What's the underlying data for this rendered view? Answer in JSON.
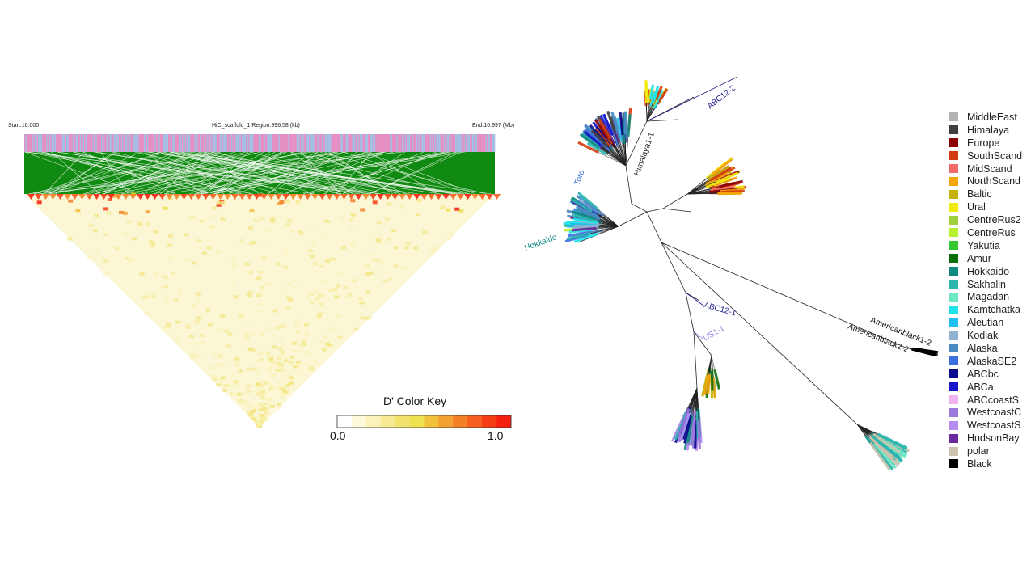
{
  "ld_plot": {
    "start_label": "Start:10.000",
    "region_label": "HiC_scaffold_1 Region:996.58 (kb)",
    "end_label": "End:10.997 (Mb)",
    "color_key": {
      "title": "D' Color Key",
      "min_label": "0.0",
      "max_label": "1.0",
      "colors": [
        "#ffffff",
        "#fdf9da",
        "#faf2b8",
        "#f6ea92",
        "#f2e36f",
        "#eee04e",
        "#f1c13d",
        "#f3a032",
        "#f47f27",
        "#f55e1e",
        "#f53d15",
        "#f51f10"
      ]
    },
    "track_colors": {
      "pink": "#e58fc4",
      "blue": "#9fc3e6",
      "green": "#118a11"
    }
  },
  "tree": {
    "clade_labels": [
      {
        "text": "ABC12-2",
        "color": "#1a1a8c"
      },
      {
        "text": "ABC12-1",
        "color": "#1a1a8c"
      },
      {
        "text": "US1-1",
        "color": "#9b7be0"
      },
      {
        "text": "Americanblack1-2",
        "color": "#111111"
      },
      {
        "text": "Americanblack2-2",
        "color": "#111111"
      },
      {
        "text": "Himalaya1-1",
        "color": "#333333"
      },
      {
        "text": "Hokkaido",
        "color": "#148b84"
      },
      {
        "text": "Toro",
        "color": "#3a6fd8"
      }
    ]
  },
  "legend": {
    "items": [
      {
        "label": "MiddleEast",
        "color": "#b3b3b3"
      },
      {
        "label": "Himalaya",
        "color": "#404040"
      },
      {
        "label": "Europe",
        "color": "#8b0000"
      },
      {
        "label": "SouthScand",
        "color": "#d13b0f"
      },
      {
        "label": "MidScand",
        "color": "#f26b6b"
      },
      {
        "label": "NorthScand",
        "color": "#f5a40a"
      },
      {
        "label": "Baltic",
        "color": "#c4b20a"
      },
      {
        "label": "Ural",
        "color": "#f0ea0f"
      },
      {
        "label": "CentreRus2",
        "color": "#9fcf3a"
      },
      {
        "label": "CentreRus",
        "color": "#b6f02e"
      },
      {
        "label": "Yakutia",
        "color": "#33c933"
      },
      {
        "label": "Amur",
        "color": "#0b6e0b"
      },
      {
        "label": "Hokkaido",
        "color": "#108a80"
      },
      {
        "label": "Sakhalin",
        "color": "#2bb5ad"
      },
      {
        "label": "Magadan",
        "color": "#6ee8c4"
      },
      {
        "label": "Kamtchatka",
        "color": "#1ee3e8"
      },
      {
        "label": "Aleutian",
        "color": "#1ebef0"
      },
      {
        "label": "Kodiak",
        "color": "#8fb3d0"
      },
      {
        "label": "Alaska",
        "color": "#4a8ac4"
      },
      {
        "label": "AlaskaSE2",
        "color": "#3b6fe0"
      },
      {
        "label": "ABCbc",
        "color": "#0a0a8a"
      },
      {
        "label": "ABCa",
        "color": "#1515c9"
      },
      {
        "label": "ABCcoastS",
        "color": "#f0b3f0"
      },
      {
        "label": "WestcoastC",
        "color": "#9b78dc"
      },
      {
        "label": "WestcoastS",
        "color": "#b58cf0"
      },
      {
        "label": "HudsonBay",
        "color": "#6a2a9c"
      },
      {
        "label": "polar",
        "color": "#cdc3b0"
      },
      {
        "label": "Black",
        "color": "#000000"
      }
    ]
  }
}
